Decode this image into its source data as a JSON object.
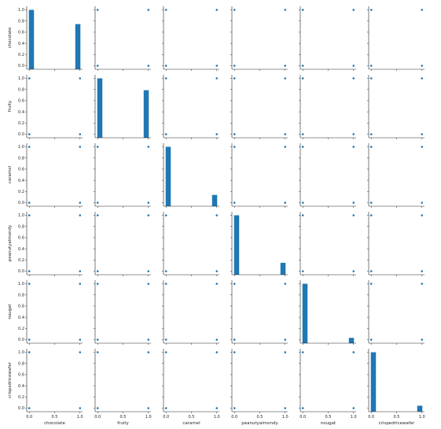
{
  "chart_data": {
    "type": "scatter",
    "kind": "pairplot",
    "variables": [
      "chocolate",
      "fruity",
      "caramel",
      "peanutyalmondy",
      "nougat",
      "crispedricewafer"
    ],
    "color": "#1f77b4",
    "x_tick_labels": [
      "0.0",
      "0.5",
      "1.0"
    ],
    "y_tick_labels": [
      "0.0",
      "0.2",
      "0.4",
      "0.6",
      "0.8",
      "1.0"
    ],
    "xlim": [
      -0.05,
      1.05
    ],
    "grid": false,
    "diagonal": [
      {
        "variable": "chocolate",
        "type": "hist",
        "bins": [
          0.0,
          1.0
        ],
        "values": [
          1.0,
          0.76
        ]
      },
      {
        "variable": "fruity",
        "type": "hist",
        "bins": [
          0.0,
          1.0
        ],
        "values": [
          1.0,
          0.8
        ]
      },
      {
        "variable": "caramel",
        "type": "hist",
        "bins": [
          0.0,
          1.0
        ],
        "values": [
          1.0,
          0.19
        ]
      },
      {
        "variable": "peanutyalmondy",
        "type": "hist",
        "bins": [
          0.0,
          1.0
        ],
        "values": [
          1.0,
          0.2
        ]
      },
      {
        "variable": "nougat",
        "type": "hist",
        "bins": [
          0.0,
          1.0
        ],
        "values": [
          1.0,
          0.09
        ]
      },
      {
        "variable": "crispedricewafer",
        "type": "hist",
        "bins": [
          0.0,
          1.0
        ],
        "values": [
          1.0,
          0.1
        ]
      }
    ],
    "scatter_points": [
      [
        0,
        0
      ],
      [
        1,
        0
      ],
      [
        0,
        1
      ],
      [
        1,
        1
      ]
    ]
  }
}
